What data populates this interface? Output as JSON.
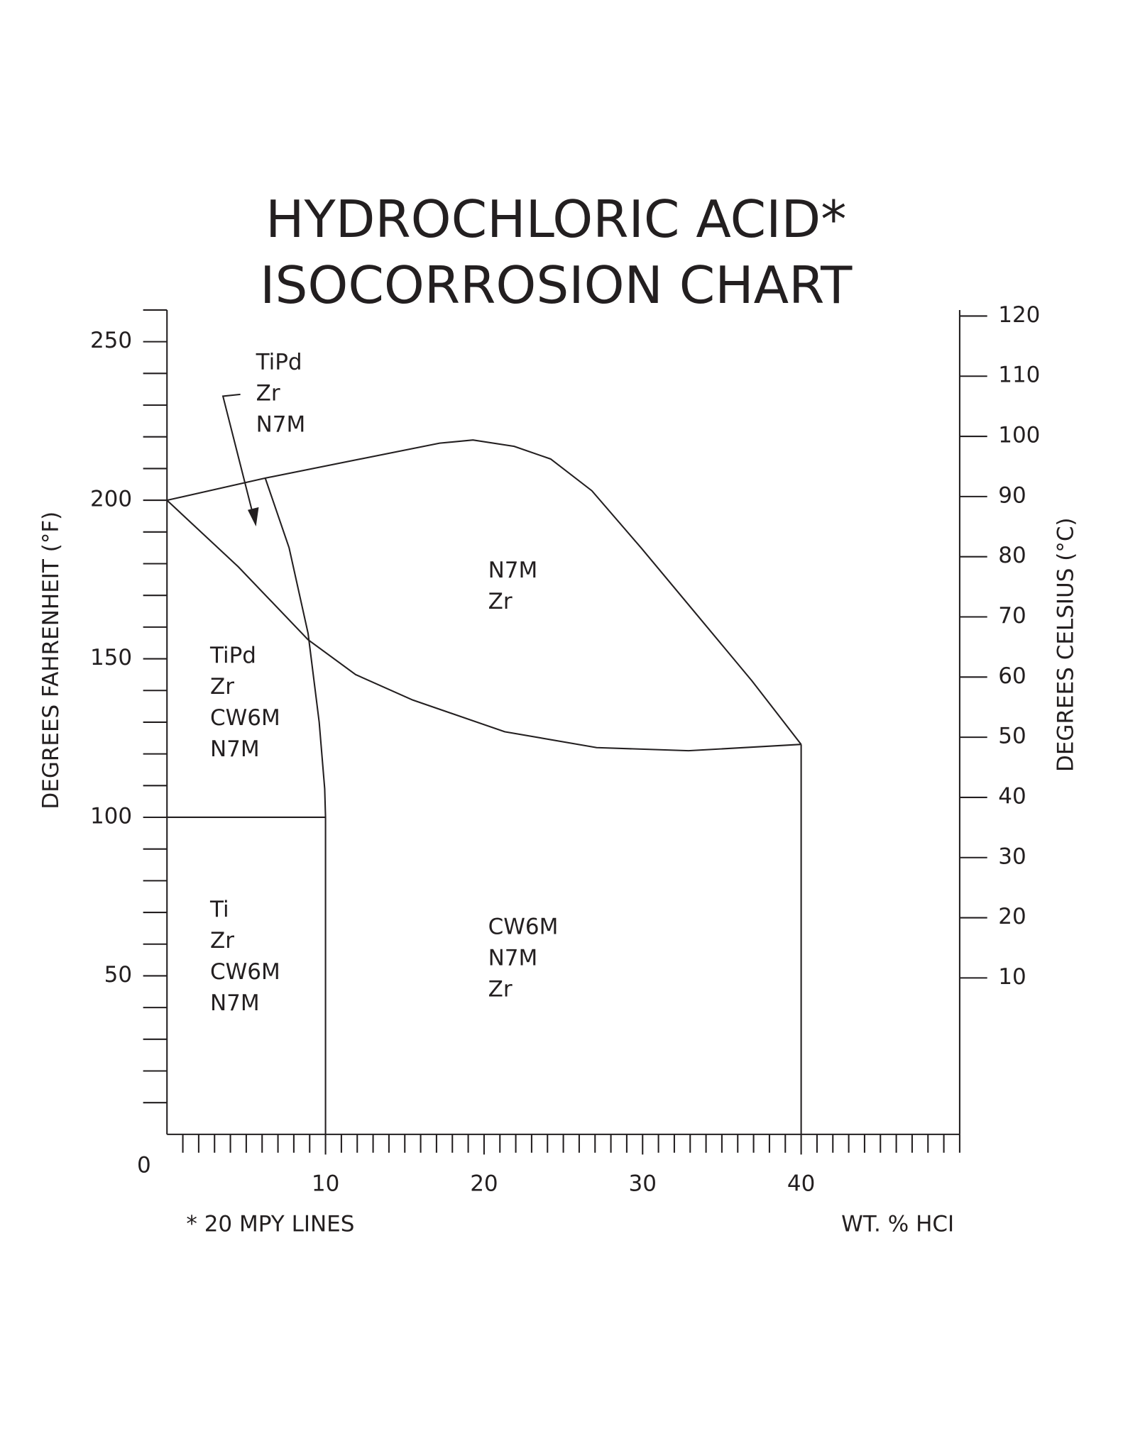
{
  "chart_data": {
    "type": "line",
    "title": [
      "HYDROCHLORIC ACID*",
      "ISOCORROSION CHART"
    ],
    "ylabel": "DEGREES FAHRENHEIT (°F)",
    "y2label": "DEGREES CELSIUS (°C)",
    "xlabel": "WT. % HCI",
    "note": "* 20 MPY LINES",
    "xlim": [
      0,
      50
    ],
    "xticks": [
      0,
      10,
      20,
      30,
      40
    ],
    "x_minor_ticks": [
      1,
      2,
      3,
      4,
      5,
      6,
      7,
      8,
      9,
      11,
      12,
      13,
      14,
      15,
      16,
      17,
      18,
      19,
      21,
      22,
      23,
      24,
      25,
      26,
      27,
      28,
      29,
      31,
      32,
      33,
      34,
      35,
      36,
      37,
      38,
      39,
      41,
      42,
      43,
      44,
      45,
      46,
      47,
      48,
      49,
      50
    ],
    "ylim": [
      0,
      260
    ],
    "yticks": [
      50,
      100,
      150,
      200,
      250
    ],
    "y_minor_ticks": [
      10,
      20,
      30,
      40,
      60,
      70,
      80,
      90,
      110,
      120,
      130,
      140,
      160,
      170,
      180,
      190,
      210,
      220,
      230,
      240,
      260
    ],
    "y2lim": [
      -16,
      121
    ],
    "y2ticks": [
      10,
      20,
      30,
      40,
      50,
      60,
      70,
      80,
      90,
      100,
      110,
      120
    ],
    "color": "#231f20",
    "boundaries": [
      {
        "x": [
          0,
          6.2,
          17.2,
          19.3,
          21.9,
          24.2,
          26.8,
          29.9,
          33.4,
          36.9,
          40
        ],
        "y": [
          200,
          207,
          218,
          219,
          217,
          213,
          203,
          185,
          164,
          143,
          123
        ]
      },
      {
        "x": [
          0,
          4.5,
          8.9,
          11.9,
          15.5,
          21.3,
          27.1,
          32.9,
          40
        ],
        "y": [
          200,
          179,
          156,
          145,
          137,
          127,
          122,
          121,
          123
        ]
      },
      {
        "x": [
          6.2,
          7.7,
          8.9,
          9.6,
          9.95,
          10,
          10
        ],
        "y": [
          207,
          185,
          158,
          130,
          109,
          100,
          0
        ]
      },
      {
        "x": [
          0,
          10
        ],
        "y": [
          100,
          100
        ]
      },
      {
        "x": [
          40,
          40
        ],
        "y": [
          123,
          0
        ]
      }
    ],
    "regions": [
      {
        "lines": [
          "TiPd",
          "Zr",
          "N7M"
        ]
      },
      {
        "lines": [
          "N7M",
          "Zr"
        ]
      },
      {
        "lines": [
          "TiPd",
          "Zr",
          "CW6M",
          "N7M"
        ]
      },
      {
        "lines": [
          "Ti",
          "Zr",
          "CW6M",
          "N7M"
        ]
      },
      {
        "lines": [
          "CW6M",
          "N7M",
          "Zr"
        ]
      }
    ]
  }
}
